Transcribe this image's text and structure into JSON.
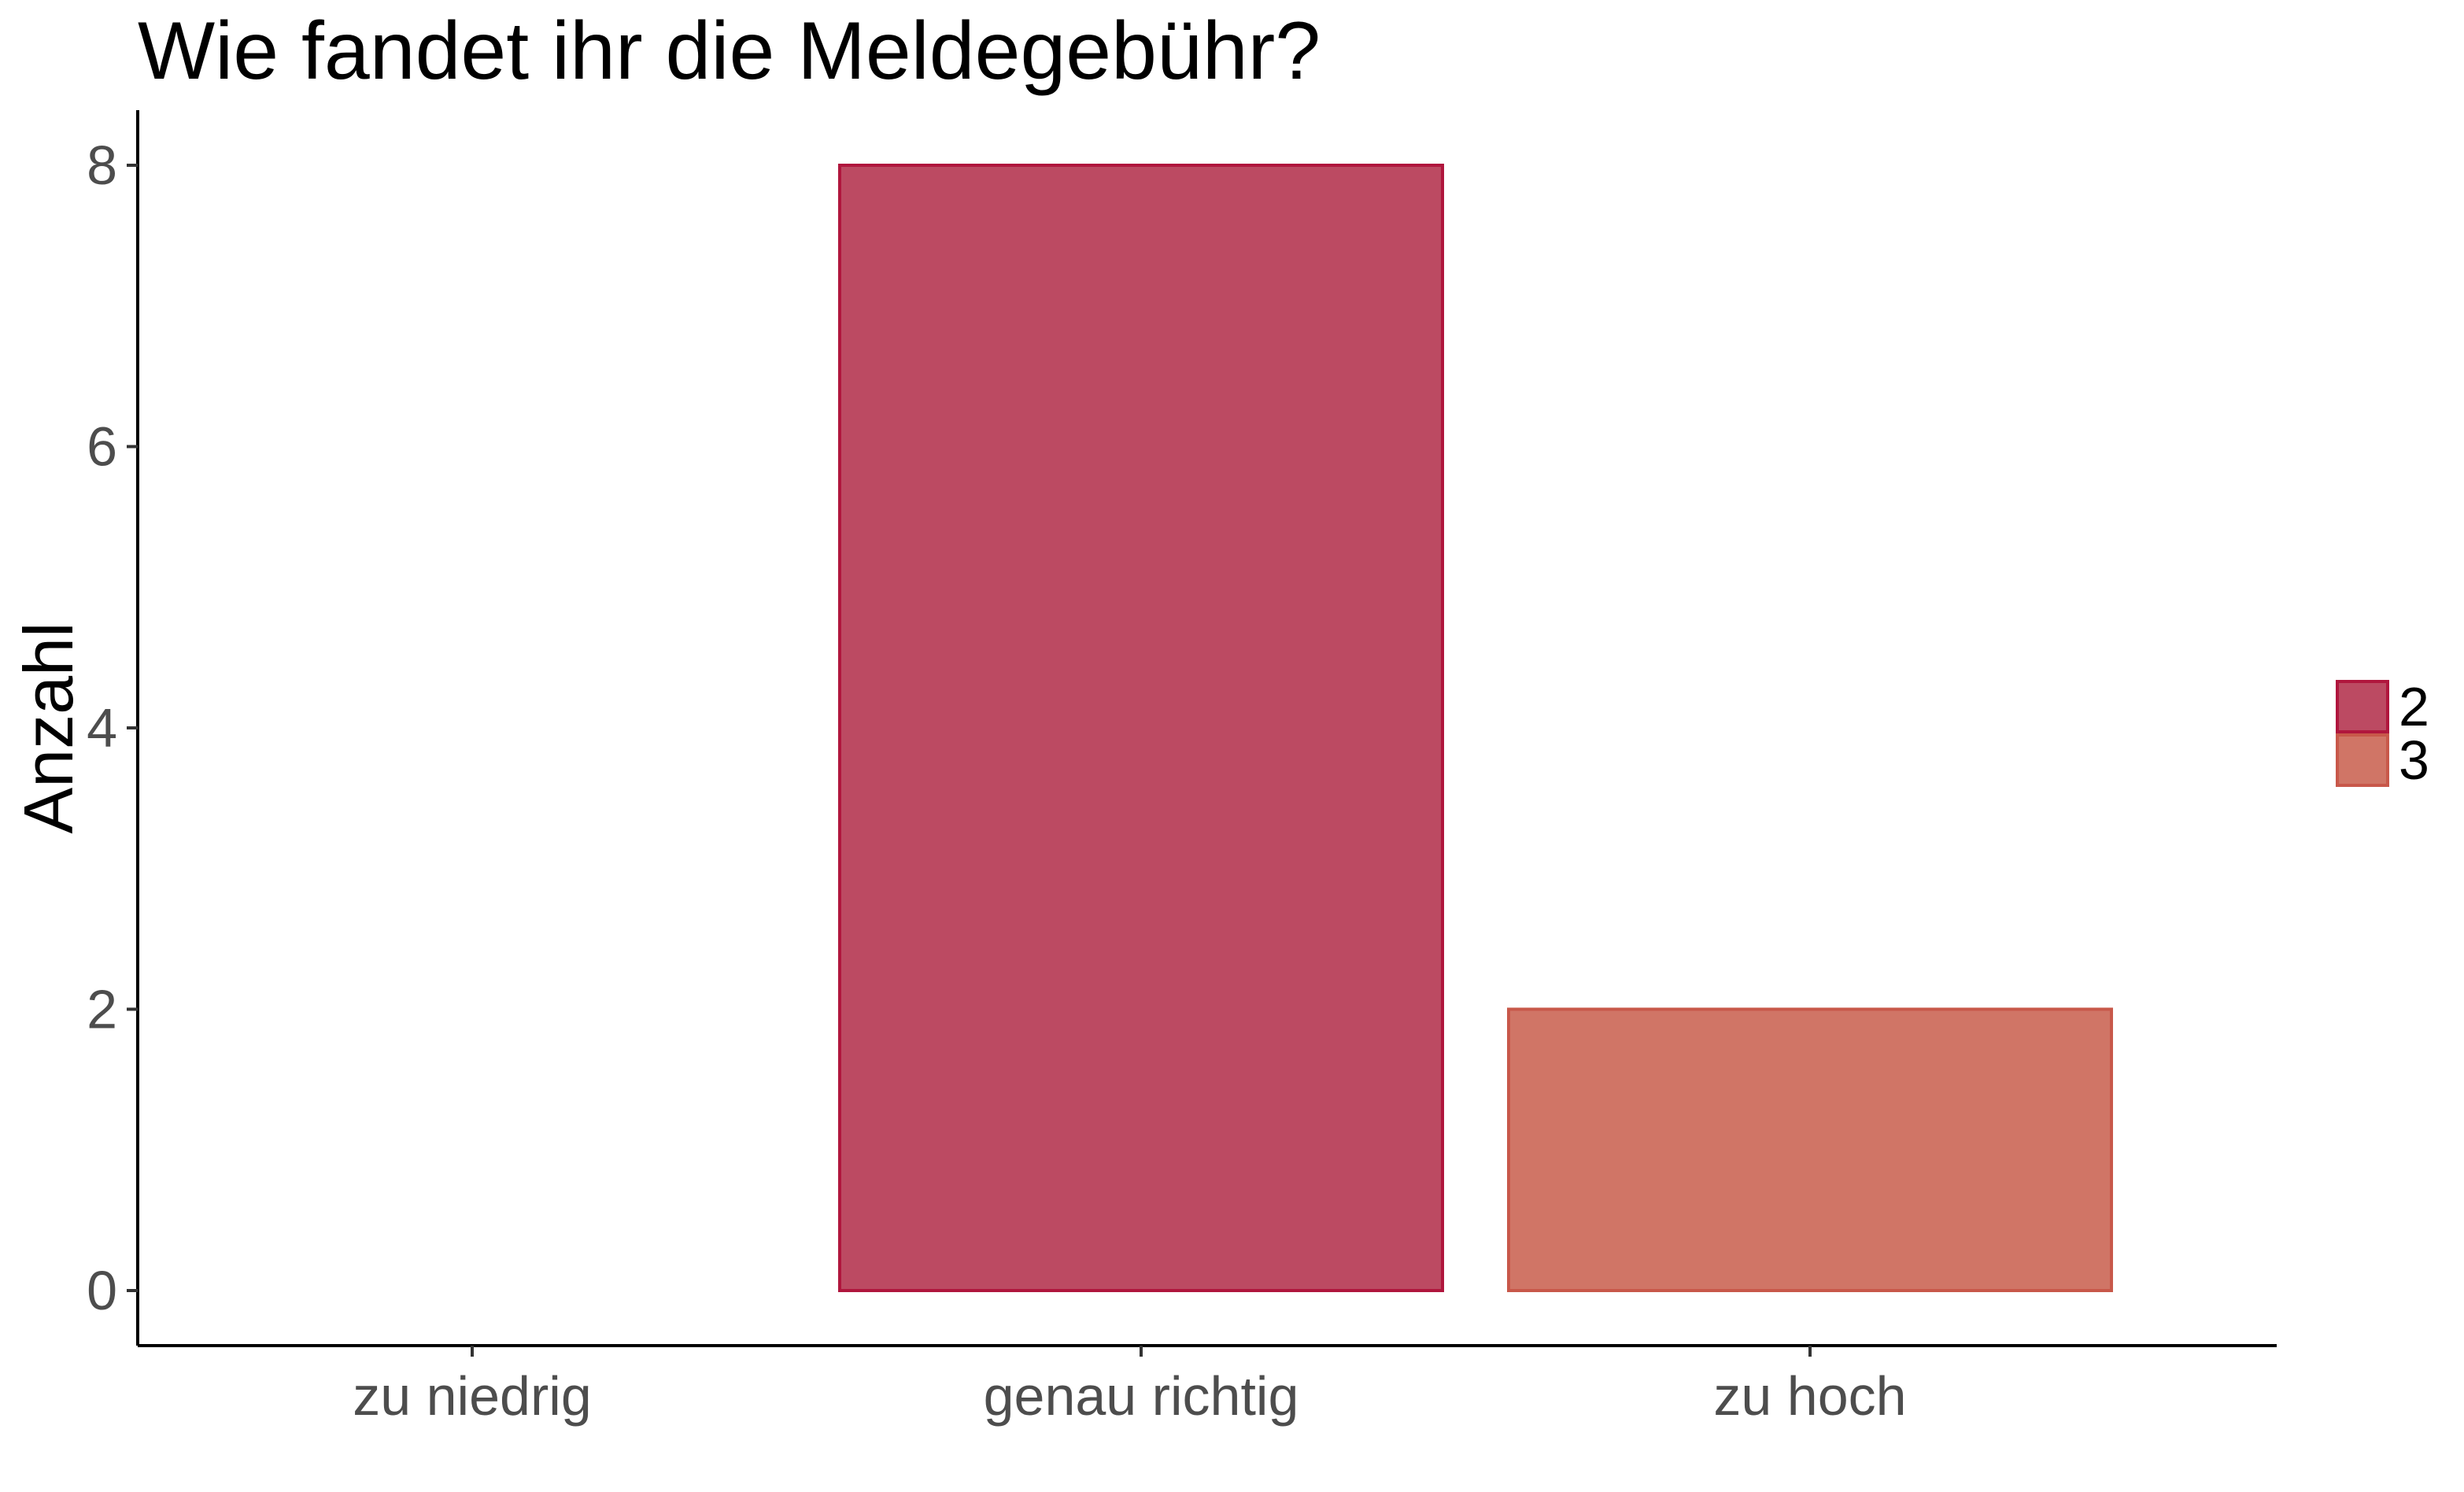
{
  "chart_data": {
    "type": "bar",
    "title": "Wie fandet ihr die Meldegebühr?",
    "xlabel": "",
    "ylabel": "Anzahl",
    "categories": [
      "zu niedrig",
      "genau richtig",
      "zu hoch"
    ],
    "values": [
      0,
      8,
      2
    ],
    "fill_group": [
      null,
      "2",
      "3"
    ],
    "ylim": [
      0,
      8.4
    ],
    "yticks": [
      "0",
      "2",
      "4",
      "6",
      "8"
    ],
    "grid": false,
    "legend": {
      "placement": "right",
      "entries": [
        {
          "label": "2",
          "color": "#bc4a62",
          "stroke": "#b0163d"
        },
        {
          "label": "3",
          "color": "#d07566",
          "stroke": "#c8584a"
        }
      ]
    }
  }
}
